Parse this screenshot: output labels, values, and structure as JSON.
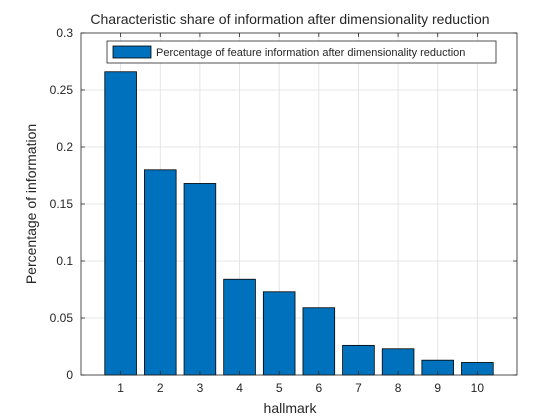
{
  "chart_data": {
    "type": "bar",
    "title": "Characteristic share of information after dimensionality reduction",
    "xlabel": "hallmark",
    "ylabel": "Percentage of information",
    "categories": [
      "1",
      "2",
      "3",
      "4",
      "5",
      "6",
      "7",
      "8",
      "9",
      "10"
    ],
    "series": [
      {
        "name": "Percentage of feature information after dimensionality reduction",
        "values": [
          0.266,
          0.18,
          0.168,
          0.084,
          0.073,
          0.059,
          0.026,
          0.023,
          0.013,
          0.011
        ]
      }
    ],
    "ylim": [
      0,
      0.3
    ],
    "yticks": [
      "0",
      "0.05",
      "0.1",
      "0.15",
      "0.2",
      "0.25",
      "0.3"
    ],
    "ytick_values": [
      0,
      0.05,
      0.1,
      0.15,
      0.2,
      0.25,
      0.3
    ],
    "grid": true,
    "legend_position": "top-right",
    "bar_color": "#0072bd"
  }
}
